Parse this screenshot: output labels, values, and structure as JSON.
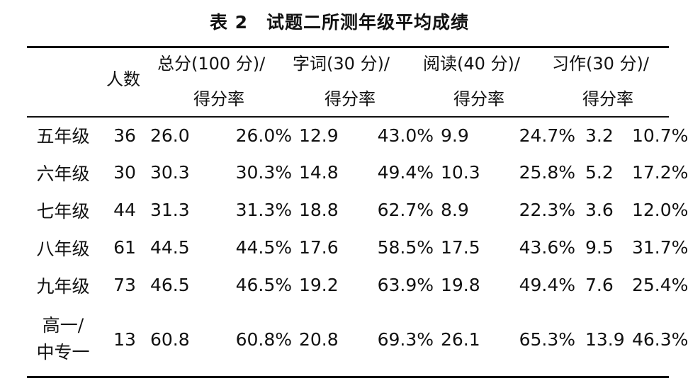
{
  "title": "表 2　试题二所测年级平均成绩",
  "headers": {
    "count": "人数",
    "total": "总分(100 分)/",
    "words": "字词(30 分)/",
    "reading": "阅读(40 分)/",
    "writing": "习作(30 分)/",
    "rate": "得分率"
  },
  "rows": [
    {
      "grade": "五年级",
      "count": "36",
      "total": "26.0",
      "total_rate": "26.0%",
      "words": "12.9",
      "words_rate": "43.0%",
      "reading": "9.9",
      "reading_rate": "24.7%",
      "writing": "3.2",
      "writing_rate": "10.7%"
    },
    {
      "grade": "六年级",
      "count": "30",
      "total": "30.3",
      "total_rate": "30.3%",
      "words": "14.8",
      "words_rate": "49.4%",
      "reading": "10.3",
      "reading_rate": "25.8%",
      "writing": "5.2",
      "writing_rate": "17.2%"
    },
    {
      "grade": "七年级",
      "count": "44",
      "total": "31.3",
      "total_rate": "31.3%",
      "words": "18.8",
      "words_rate": "62.7%",
      "reading": "8.9",
      "reading_rate": "22.3%",
      "writing": "3.6",
      "writing_rate": "12.0%"
    },
    {
      "grade": "八年级",
      "count": "61",
      "total": "44.5",
      "total_rate": "44.5%",
      "words": "17.6",
      "words_rate": "58.5%",
      "reading": "17.5",
      "reading_rate": "43.6%",
      "writing": "9.5",
      "writing_rate": "31.7%"
    },
    {
      "grade": "九年级",
      "count": "73",
      "total": "46.5",
      "total_rate": "46.5%",
      "words": "19.2",
      "words_rate": "63.9%",
      "reading": "19.8",
      "reading_rate": "49.4%",
      "writing": "7.6",
      "writing_rate": "25.4%"
    },
    {
      "grade_line1": "高一/",
      "grade_line2": "中专一",
      "count": "13",
      "total": "60.8",
      "total_rate": "60.8%",
      "words": "20.8",
      "words_rate": "69.3%",
      "reading": "26.1",
      "reading_rate": "65.3%",
      "writing": "13.9",
      "writing_rate": "46.3%"
    }
  ]
}
